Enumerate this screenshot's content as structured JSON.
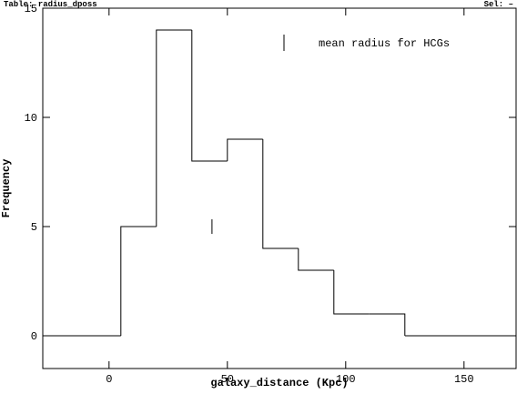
{
  "header": {
    "left": "Table: radius_dposs",
    "right": "Sel: –"
  },
  "chart_data": {
    "type": "histogram",
    "x_label": "galaxy_distance (Kpc)",
    "y_label": "Frequency",
    "bins": [
      5,
      20,
      35,
      50,
      65,
      80,
      95,
      110,
      125
    ],
    "counts": [
      5,
      14,
      8,
      9,
      4,
      3,
      1,
      1
    ],
    "color": "#000000",
    "xlim": [
      -28,
      172
    ],
    "ylim": [
      -1.5,
      15
    ],
    "xticks": [
      0,
      50,
      100,
      150
    ],
    "yticks": [
      0,
      5,
      10,
      15
    ],
    "marker": {
      "name": "mean radius for HCGs",
      "x": 43.5,
      "y": 5
    }
  }
}
